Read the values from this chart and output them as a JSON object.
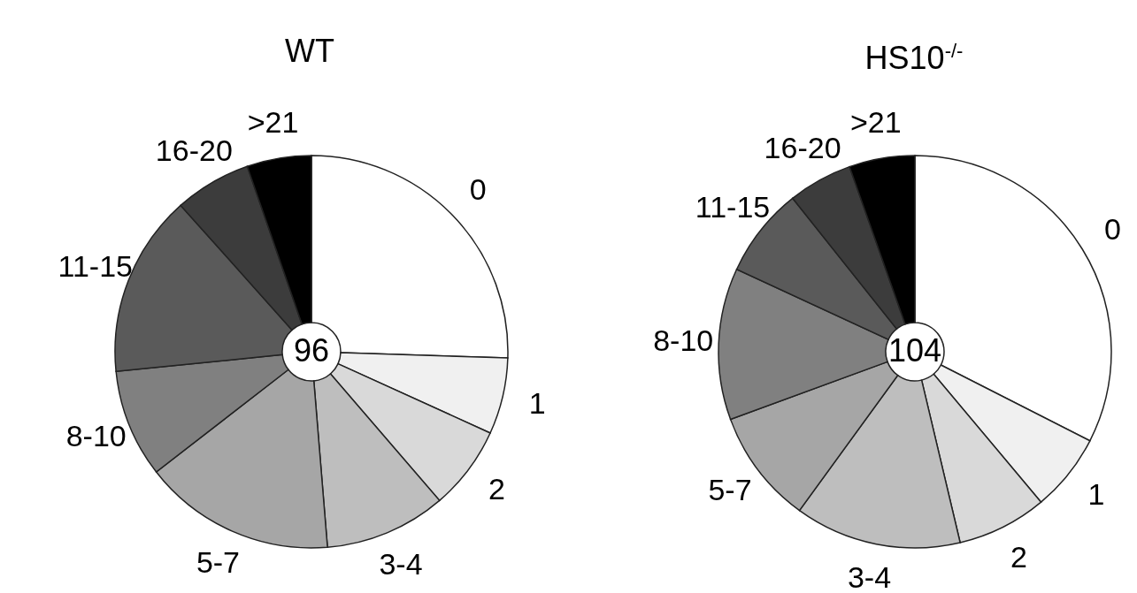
{
  "chart_data": [
    {
      "type": "donut",
      "title": "WT",
      "categories": [
        "0",
        "1",
        "2",
        "3-4",
        "5-7",
        "8-10",
        "11-15",
        "16-20",
        ">21"
      ],
      "values": [
        25.5,
        6.3,
        6.9,
        10,
        15.8,
        8.9,
        15,
        6.3,
        5.3
      ],
      "colors": [
        "#ffffff",
        "#f0f0f0",
        "#d9d9d9",
        "#bebebe",
        "#a6a6a6",
        "#808080",
        "#5a5a5a",
        "#3c3c3c",
        "#000000"
      ],
      "annotations": [
        "96"
      ]
    },
    {
      "type": "donut",
      "title": "HS10$^{-/-}$",
      "categories": [
        "0",
        "1",
        "2",
        "3-4",
        "5-7",
        "8-10",
        "11-15",
        "16-20",
        ">21"
      ],
      "values": [
        32.5,
        6.4,
        7.4,
        13.7,
        9.4,
        12.5,
        7.4,
        5.3,
        5.4
      ],
      "colors": [
        "#ffffff",
        "#f0f0f0",
        "#d9d9d9",
        "#bebebe",
        "#a6a6a6",
        "#808080",
        "#5a5a5a",
        "#3c3c3c",
        "#000000"
      ],
      "annotations": [
        "104"
      ]
    }
  ]
}
